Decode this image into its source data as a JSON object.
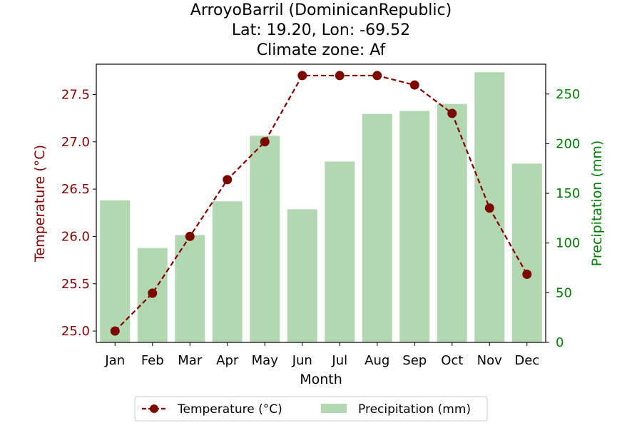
{
  "chart_data": {
    "type": "bar",
    "title": [
      "ArroyoBarril (DominicanRepublic)",
      "Lat: 19.20, Lon: -69.52",
      "Climate zone: Af"
    ],
    "xlabel": "Month",
    "categories": [
      "Jan",
      "Feb",
      "Mar",
      "Apr",
      "May",
      "Jun",
      "Jul",
      "Aug",
      "Sep",
      "Oct",
      "Nov",
      "Dec"
    ],
    "y_left": {
      "label": "Temperature (°C)",
      "color": "#8b0000",
      "lim": [
        24.88,
        27.82
      ],
      "ticks": [
        "25.0",
        "25.5",
        "26.0",
        "26.5",
        "27.0",
        "27.5"
      ]
    },
    "y_right": {
      "label": "Precipitation (mm)",
      "color": "#008000",
      "lim": [
        0,
        280
      ],
      "ticks": [
        "0",
        "50",
        "100",
        "150",
        "200",
        "250"
      ]
    },
    "series": [
      {
        "name": "Temperature (°C)",
        "type": "line",
        "axis": "left",
        "color": "#8b0000",
        "values": [
          25.0,
          25.4,
          26.0,
          26.6,
          27.0,
          27.7,
          27.7,
          27.7,
          27.6,
          27.3,
          26.3,
          25.6
        ]
      },
      {
        "name": "Precipitation (mm)",
        "type": "bar",
        "axis": "right",
        "color": "#b2d8b2",
        "values": [
          143,
          95,
          108,
          142,
          208,
          134,
          182,
          230,
          233,
          240,
          272,
          180
        ]
      }
    ],
    "legend": "bottom-center",
    "grid": false
  }
}
